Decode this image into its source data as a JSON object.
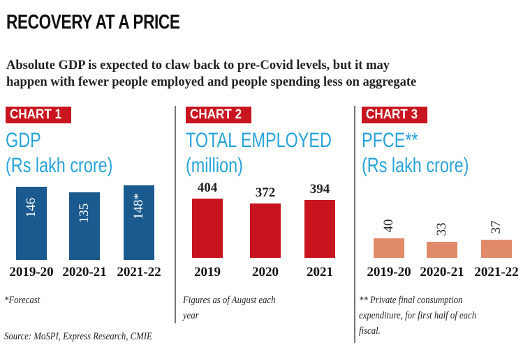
{
  "title": "RECOVERY AT A PRICE",
  "subtitle": [
    "Absolute GDP is expected to claw back to pre-Covid levels, but it may",
    "happen with fewer people employed and people spending less on aggregate"
  ],
  "source": "Source: MoSPI, Express Research, CMIE",
  "chart_data": [
    {
      "type": "bar",
      "tag": "CHART 1",
      "title": "GDP",
      "unit": "(Rs lakh crore)",
      "categories": [
        "2019-20",
        "2020-21",
        "2021-22"
      ],
      "values": [
        146,
        135,
        148
      ],
      "value_labels": [
        "146",
        "135",
        "148*"
      ],
      "color": "#1a5a8e",
      "note": "*Forecast"
    },
    {
      "type": "bar",
      "tag": "CHART 2",
      "title": "TOTAL EMPLOYED",
      "unit": "(million)",
      "categories": [
        "2019",
        "2020",
        "2021"
      ],
      "values": [
        404,
        372,
        394
      ],
      "value_labels": [
        "404",
        "372",
        "394"
      ],
      "color": "#c8141e",
      "note": [
        "Figures as of August each",
        "year"
      ]
    },
    {
      "type": "bar",
      "tag": "CHART 3",
      "title": "PFCE**",
      "unit": "(Rs lakh crore)",
      "categories": [
        "2019-20",
        "2020-21",
        "2021-22"
      ],
      "values": [
        40,
        33,
        37
      ],
      "value_labels": [
        "40",
        "33",
        "37"
      ],
      "color": "#e08a6a",
      "note": [
        "** Private final consumption",
        "expenditure, for first half of each",
        "fiscal."
      ]
    }
  ]
}
